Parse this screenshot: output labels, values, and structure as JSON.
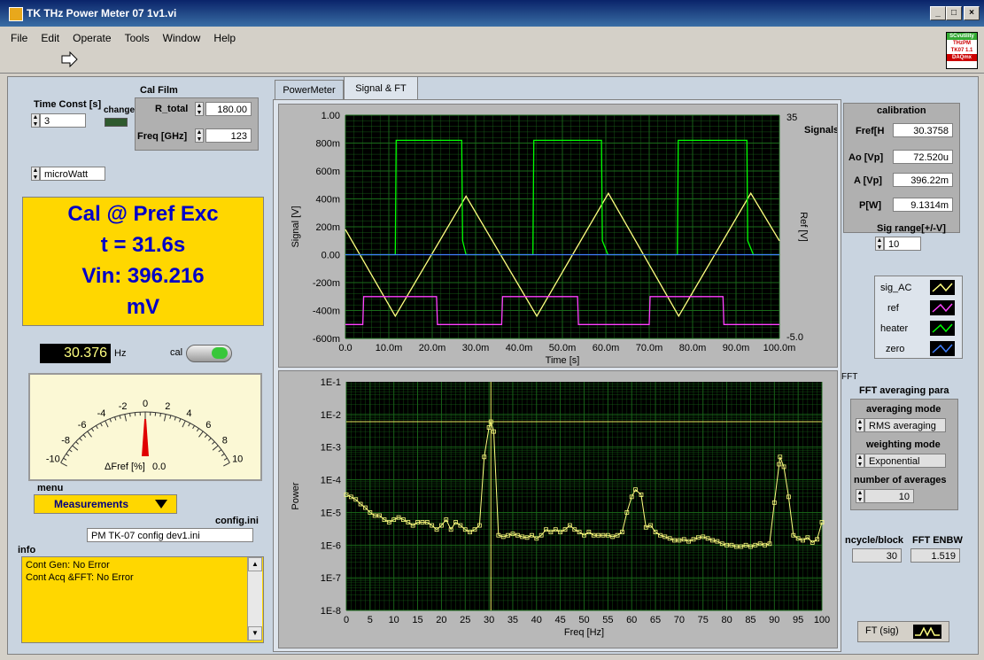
{
  "window": {
    "title": "TK THz Power Meter 07 1v1.vi",
    "min": "_",
    "max": "□",
    "close": "×"
  },
  "menu": [
    "File",
    "Edit",
    "Operate",
    "Tools",
    "Window",
    "Help"
  ],
  "badge": [
    "SCvutility",
    "THzPM",
    "TK07 1.1",
    "DAQmx"
  ],
  "left": {
    "time_const_label": "Time Const [s]",
    "time_const_value": "3",
    "change_label": "change",
    "cal_film_label": "Cal Film",
    "r_total_label": "R_total",
    "r_total_value": "180.00",
    "freq_label": "Freq [GHz]",
    "freq_value": "123",
    "unit_value": "microWatt",
    "display_lines": [
      "Cal @ Pref Exc",
      "t = 31.6s",
      "Vin: 396.216",
      "mV"
    ],
    "hz_value": "30.376",
    "hz_unit": "Hz",
    "cal_label": "cal",
    "meter_ticks": [
      "-10",
      "-8",
      "-6",
      "-4",
      "-2",
      "0",
      "2",
      "4",
      "6",
      "8",
      "10"
    ],
    "meter_label": "ΔFref [%]",
    "meter_value": "0.0",
    "menu_label": "menu",
    "menu_value": "Measurements",
    "config_label": "config.ini",
    "config_value": "PM TK-07 config dev1.ini",
    "info_label": "info",
    "info_lines": [
      "Cont Gen: No Error",
      "Cont Acq &FFT:  No Error"
    ]
  },
  "tabs": [
    "PowerMeter",
    "Signal & FT"
  ],
  "right": {
    "calibration_label": "calibration",
    "fref_label": "Fref[H",
    "fref_value": "30.3758",
    "ao_label": "Ao [Vp]",
    "ao_value": "72.520u",
    "a_label": "A [Vp]",
    "a_value": "396.22m",
    "p_label": "P[W]",
    "p_value": "9.1314m",
    "sig_range_label": "Sig range[+/-V]",
    "sig_range_value": "10",
    "legend": [
      "sig_AC",
      "ref",
      "heater",
      "zero"
    ],
    "fft_label": "FFT",
    "fft_avg_label": "FFT averaging para",
    "avg_mode_label": "averaging mode",
    "avg_mode_value": "RMS averaging",
    "weight_mode_label": "weighting mode",
    "weight_mode_value": "Exponential",
    "num_avg_label": "number of averages",
    "num_avg_value": "10",
    "ncycle_label": "ncycle/block",
    "ncycle_value": "30",
    "enbw_label": "FFT ENBW",
    "enbw_value": "1.519",
    "ft_button": "FT (sig)"
  },
  "colors": {
    "panel": "#c9d4e0",
    "plot_bg": "#000000",
    "grid": "#1a6b1a",
    "sig": "#ffff80",
    "ref": "#ff40ff",
    "heater": "#00ff00",
    "zero": "#4080ff",
    "yellow": "#ffd700"
  },
  "chart_data": [
    {
      "type": "line",
      "title": "",
      "xlabel": "Time [s]",
      "ylabel": "Signal [V]",
      "y2label": "Ref [V]",
      "y2_title": "Signals",
      "xlim": [
        0,
        0.1
      ],
      "ylim": [
        -0.6,
        1.0
      ],
      "y2lim": [
        -5,
        35
      ],
      "x_ticks": [
        "0.0",
        "10.0m",
        "20.0m",
        "30.0m",
        "40.0m",
        "50.0m",
        "60.0m",
        "70.0m",
        "80.0m",
        "90.0m",
        "100.0m"
      ],
      "y_ticks": [
        "1.00",
        "800m",
        "600m",
        "400m",
        "200m",
        "0.00",
        "-200m",
        "-400m",
        "-600m"
      ],
      "y2_ticks": [
        "35",
        "-5.0"
      ],
      "series": [
        {
          "name": "sig_AC",
          "x": [
            0,
            0.0115,
            0.0278,
            0.0441,
            0.0606,
            0.0768,
            0.0934,
            0.1
          ],
          "y": [
            0.18,
            -0.44,
            0.42,
            -0.44,
            0.44,
            -0.44,
            0.44,
            0.1
          ]
        },
        {
          "name": "ref",
          "x": [
            0,
            0.004,
            0.0042,
            0.021,
            0.0212,
            0.036,
            0.0362,
            0.0535,
            0.0537,
            0.07,
            0.0702,
            0.087,
            0.0872,
            0.1
          ],
          "y": [
            -0.5,
            -0.5,
            -0.3,
            -0.3,
            -0.5,
            -0.5,
            -0.3,
            -0.3,
            -0.5,
            -0.5,
            -0.3,
            -0.3,
            -0.5,
            -0.5
          ]
        },
        {
          "name": "heater",
          "x": [
            0,
            0.0115,
            0.0117,
            0.0268,
            0.027,
            0.0278,
            0.0432,
            0.0434,
            0.059,
            0.0592,
            0.0605,
            0.0765,
            0.0767,
            0.0925,
            0.0927,
            0.094,
            0.1
          ],
          "y": [
            0,
            0,
            0.82,
            0.82,
            0.1,
            0,
            0,
            0.82,
            0.82,
            0.1,
            0,
            0,
            0.82,
            0.82,
            0.1,
            0,
            0
          ]
        },
        {
          "name": "zero",
          "x": [
            0,
            0.1
          ],
          "y": [
            0,
            0
          ]
        }
      ]
    },
    {
      "type": "line",
      "title": "",
      "xlabel": "Freq [Hz]",
      "ylabel": "Power",
      "xlim": [
        0,
        100
      ],
      "ylim": [
        1e-08,
        0.1
      ],
      "yscale": "log",
      "x_ticks": [
        "0",
        "5",
        "10",
        "15",
        "20",
        "25",
        "30",
        "35",
        "40",
        "45",
        "50",
        "55",
        "60",
        "65",
        "70",
        "75",
        "80",
        "85",
        "90",
        "95",
        "100"
      ],
      "y_ticks": [
        "1E-1",
        "1E-2",
        "1E-3",
        "1E-4",
        "1E-5",
        "1E-6",
        "1E-7",
        "1E-8"
      ],
      "cursor": {
        "x": 30.4,
        "y": 0.006
      },
      "series": [
        {
          "name": "FFT",
          "x": [
            0,
            1,
            2,
            3,
            4,
            5,
            6,
            7,
            8,
            9,
            10,
            11,
            12,
            13,
            14,
            15,
            16,
            17,
            18,
            19,
            20,
            21,
            22,
            23,
            24,
            25,
            26,
            27,
            28,
            29,
            30,
            30.4,
            31,
            32,
            33,
            34,
            35,
            36,
            37,
            38,
            39,
            40,
            41,
            42,
            43,
            44,
            45,
            46,
            47,
            48,
            49,
            50,
            51,
            52,
            53,
            54,
            55,
            56,
            57,
            58,
            59,
            60,
            60.8,
            62,
            63,
            64,
            65,
            66,
            67,
            68,
            69,
            70,
            71,
            72,
            73,
            74,
            75,
            76,
            77,
            78,
            79,
            80,
            81,
            82,
            83,
            84,
            85,
            86,
            87,
            88,
            89,
            90,
            91,
            91.2,
            92,
            93,
            94,
            95,
            96,
            97,
            98,
            99,
            100
          ],
          "y": [
            3.5e-05,
            3e-05,
            2.5e-05,
            1.8e-05,
            1.4e-05,
            1e-05,
            8e-06,
            8e-06,
            6e-06,
            5e-06,
            6e-06,
            7e-06,
            6e-06,
            5e-06,
            4e-06,
            5e-06,
            5e-06,
            5e-06,
            4e-06,
            3e-06,
            4e-06,
            6e-06,
            3e-06,
            5e-06,
            4e-06,
            3e-06,
            2.5e-06,
            3e-06,
            4e-06,
            0.0005,
            0.004,
            0.006,
            0.003,
            2e-06,
            1.8e-06,
            2e-06,
            2.2e-06,
            2e-06,
            1.8e-06,
            1.7e-06,
            2e-06,
            1.6e-06,
            2e-06,
            3e-06,
            2.5e-06,
            3e-06,
            2.5e-06,
            3e-06,
            4e-06,
            3e-06,
            2.5e-06,
            2e-06,
            2.5e-06,
            2e-06,
            2e-06,
            2e-06,
            2e-06,
            1.8e-06,
            2e-06,
            2.5e-06,
            1e-05,
            3e-05,
            5e-05,
            3.5e-05,
            3.5e-06,
            4e-06,
            2.5e-06,
            2e-06,
            1.8e-06,
            1.6e-06,
            1.4e-06,
            1.4e-06,
            1.5e-06,
            1.3e-06,
            1.5e-06,
            1.7e-06,
            1.8e-06,
            1.6e-06,
            1.4e-06,
            1.3e-06,
            1.1e-06,
            1e-06,
            1e-06,
            9e-07,
            9e-07,
            1e-06,
            9e-07,
            1e-06,
            1.1e-06,
            1e-06,
            1.1e-06,
            2e-05,
            0.0003,
            0.0005,
            0.00025,
            3e-05,
            2e-06,
            1.6e-06,
            1.4e-06,
            1.7e-06,
            1.2e-06,
            1.5e-06,
            5e-06
          ]
        }
      ]
    }
  ]
}
